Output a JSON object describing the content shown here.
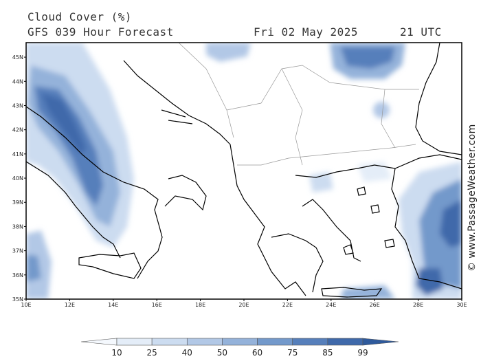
{
  "header": {
    "title": "Cloud Cover (%)",
    "subtitle": "GFS 039 Hour Forecast",
    "date": "Fri 02 May 2025",
    "time": "21 UTC"
  },
  "credit": "© www.PassageWeather.com",
  "map": {
    "lat_range": [
      35,
      45.6
    ],
    "lon_range": [
      10,
      30
    ],
    "lat_ticks": [
      "45N",
      "44N",
      "43N",
      "42N",
      "41N",
      "40N",
      "39N",
      "38N",
      "37N",
      "36N",
      "35N"
    ],
    "lon_ticks": [
      "10E",
      "12E",
      "14E",
      "16E",
      "18E",
      "20E",
      "22E",
      "24E",
      "26E",
      "28E",
      "30E"
    ]
  },
  "legend": {
    "levels": [
      "10",
      "25",
      "40",
      "50",
      "60",
      "75",
      "85",
      "99"
    ],
    "colors": [
      "#f4f8fd",
      "#e4edf8",
      "#ccdcf0",
      "#b2c8e6",
      "#94b2da",
      "#7399cb",
      "#567fbb",
      "#3f69aa",
      "#2f5a9c"
    ]
  }
}
